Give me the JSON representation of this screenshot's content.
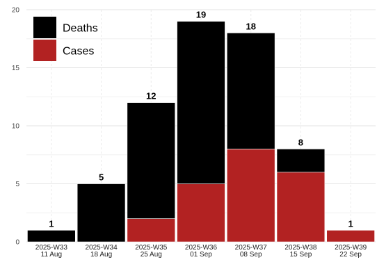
{
  "chart_data": {
    "type": "bar",
    "stacked": true,
    "categories": [
      [
        "2025-W33",
        "11 Aug"
      ],
      [
        "2025-W34",
        "18 Aug"
      ],
      [
        "2025-W35",
        "25 Aug"
      ],
      [
        "2025-W36",
        "01 Sep"
      ],
      [
        "2025-W37",
        "08 Sep"
      ],
      [
        "2025-W38",
        "15 Sep"
      ],
      [
        "2025-W39",
        "22 Sep"
      ]
    ],
    "series": [
      {
        "name": "Cases",
        "color": "#B22222",
        "values": [
          0,
          0,
          2,
          5,
          8,
          6,
          1
        ]
      },
      {
        "name": "Deaths",
        "color": "#000000",
        "values": [
          1,
          5,
          10,
          14,
          10,
          2,
          0
        ]
      }
    ],
    "totals": [
      1,
      5,
      12,
      19,
      18,
      8,
      1
    ],
    "legend_order": [
      "Deaths",
      "Cases"
    ],
    "legend_position": "top-left",
    "ylim": [
      0,
      20
    ],
    "yticks": [
      0,
      5,
      10,
      15,
      20
    ],
    "grid": true
  }
}
